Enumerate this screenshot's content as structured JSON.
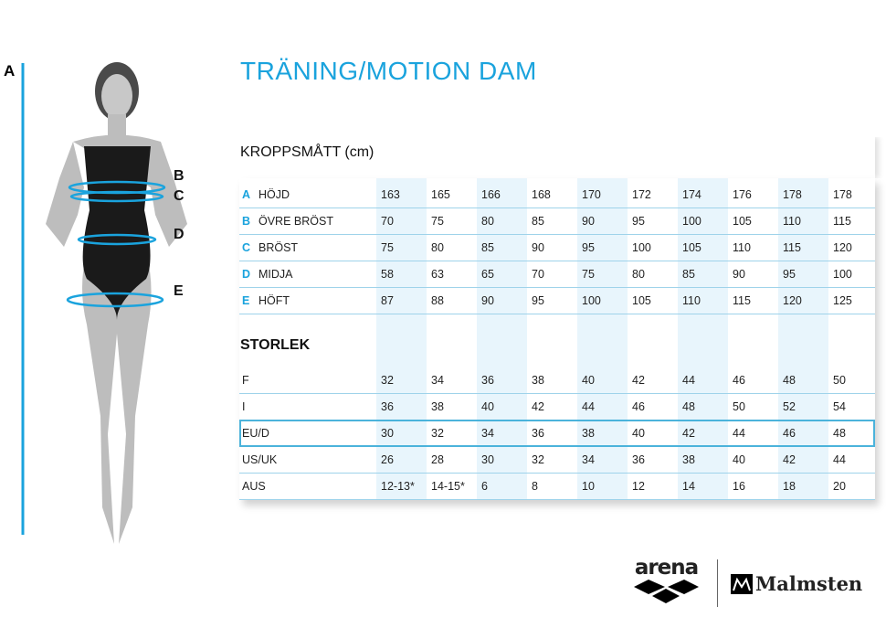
{
  "title": "TRÄNING/MOTION  DAM",
  "figure": {
    "labels": [
      "A",
      "B",
      "C",
      "D",
      "E"
    ],
    "accent": "#1aa3dd"
  },
  "body_section": {
    "heading": "KROPPSMÅTT (cm)",
    "rows": [
      {
        "letter": "A",
        "label": "HÖJD",
        "values": [
          "163",
          "165",
          "166",
          "168",
          "170",
          "172",
          "174",
          "176",
          "178",
          "178"
        ]
      },
      {
        "letter": "B",
        "label": "ÖVRE BRÖST",
        "values": [
          "70",
          "75",
          "80",
          "85",
          "90",
          "95",
          "100",
          "105",
          "110",
          "115"
        ]
      },
      {
        "letter": "C",
        "label": "BRÖST",
        "values": [
          "75",
          "80",
          "85",
          "90",
          "95",
          "100",
          "105",
          "110",
          "115",
          "120"
        ]
      },
      {
        "letter": "D",
        "label": "MIDJA",
        "values": [
          "58",
          "63",
          "65",
          "70",
          "75",
          "80",
          "85",
          "90",
          "95",
          "100"
        ]
      },
      {
        "letter": "E",
        "label": "HÖFT",
        "values": [
          "87",
          "88",
          "90",
          "95",
          "100",
          "105",
          "110",
          "115",
          "120",
          "125"
        ]
      }
    ]
  },
  "size_section": {
    "heading": "STORLEK",
    "rows": [
      {
        "label": "F",
        "values": [
          "32",
          "34",
          "36",
          "38",
          "40",
          "42",
          "44",
          "46",
          "48",
          "50"
        ]
      },
      {
        "label": "I",
        "values": [
          "36",
          "38",
          "40",
          "42",
          "44",
          "46",
          "48",
          "50",
          "52",
          "54"
        ]
      },
      {
        "label": "EU/D",
        "values": [
          "30",
          "32",
          "34",
          "36",
          "38",
          "40",
          "42",
          "44",
          "46",
          "48"
        ],
        "highlighted": true
      },
      {
        "label": "US/UK",
        "values": [
          "26",
          "28",
          "30",
          "32",
          "34",
          "36",
          "38",
          "40",
          "42",
          "44"
        ]
      },
      {
        "label": "AUS",
        "values": [
          "12-13*",
          "14-15*",
          "6",
          "8",
          "10",
          "12",
          "14",
          "16",
          "18",
          "20"
        ]
      }
    ]
  },
  "logos": {
    "arena": "arena",
    "malmsten": "Malmsten"
  }
}
